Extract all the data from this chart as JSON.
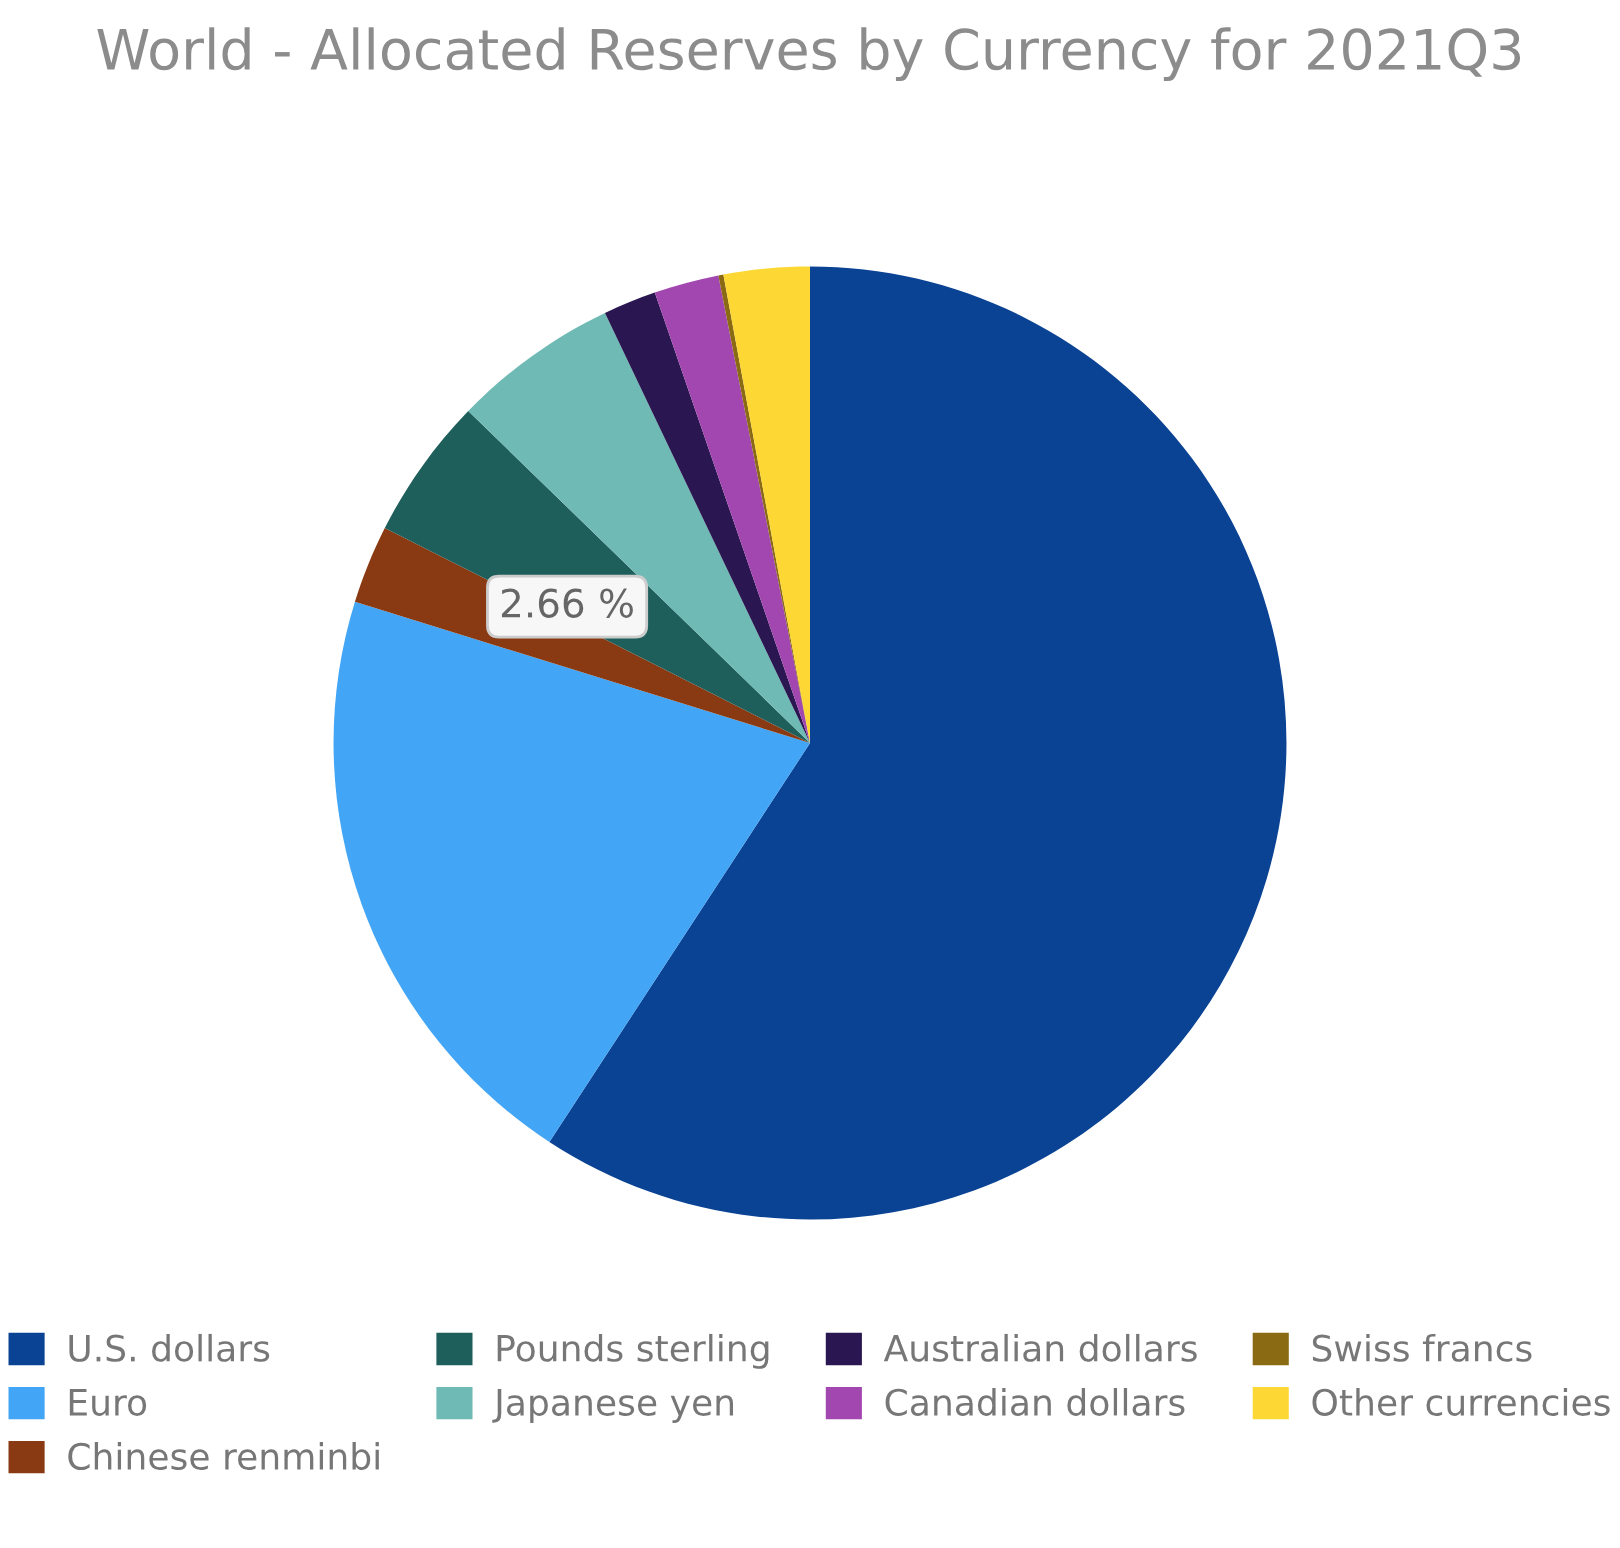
{
  "chart_data": {
    "type": "pie",
    "title": "World - Allocated Reserves by Currency for 2021Q3",
    "categories": [
      "U.S. dollars",
      "Euro",
      "Chinese renminbi",
      "Pounds sterling",
      "Japanese yen",
      "Australian dollars",
      "Canadian dollars",
      "Swiss francs",
      "Other currencies"
    ],
    "values": [
      59.21,
      20.58,
      2.66,
      4.82,
      5.65,
      1.8,
      2.2,
      0.17,
      2.91
    ],
    "colors": [
      "#0b4394",
      "#42a5f5",
      "#8a3a12",
      "#1f5f5b",
      "#6fbab5",
      "#2a1650",
      "#a347b0",
      "#8b6a14",
      "#fdd835"
    ],
    "value_labels": [
      null,
      null,
      "2.66 %",
      null,
      null,
      null,
      null,
      null,
      null
    ],
    "legend": "bottom"
  }
}
